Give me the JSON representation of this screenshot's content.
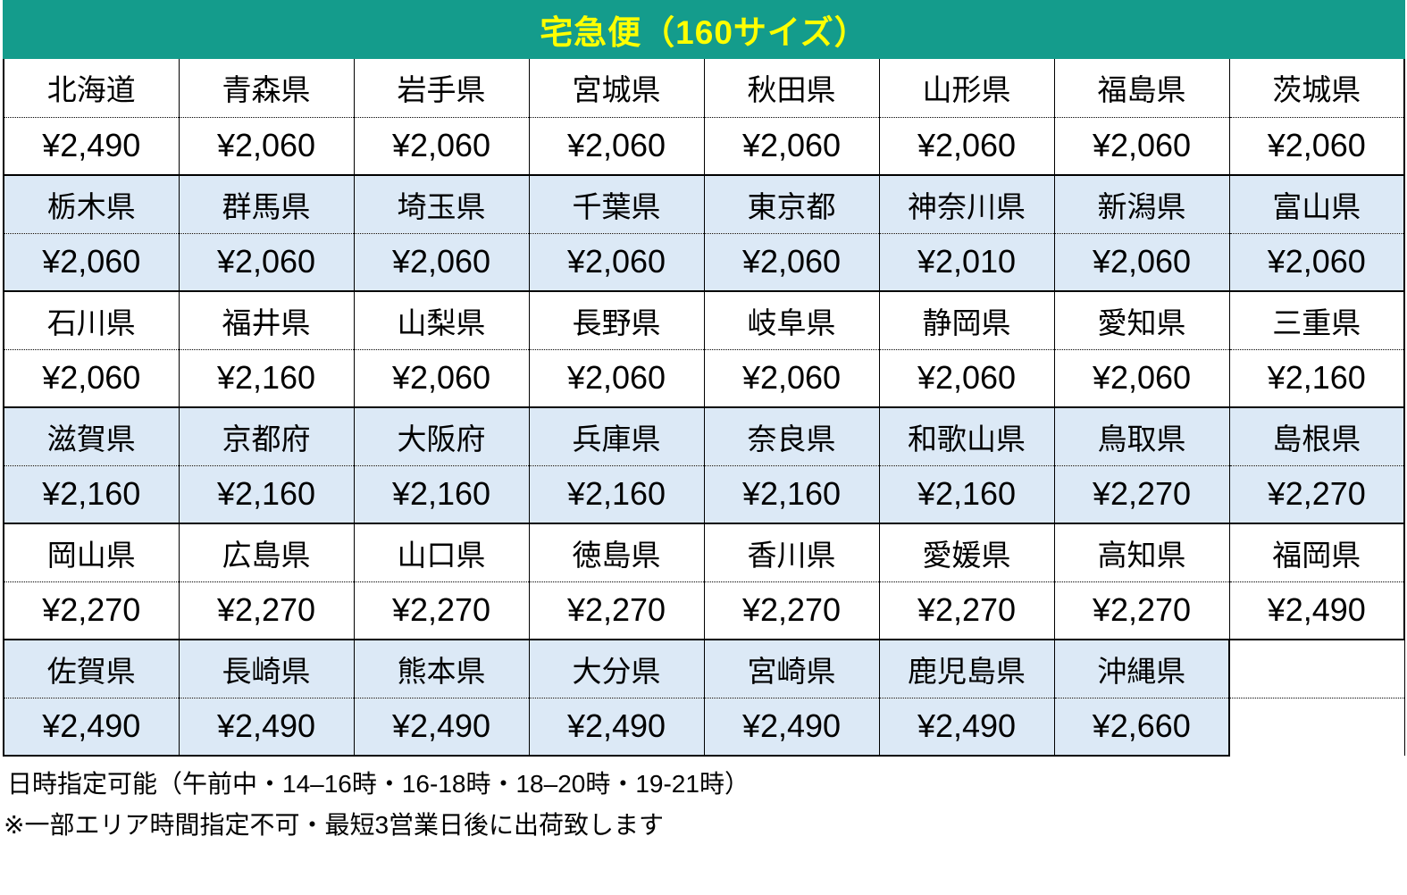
{
  "title": "宅急便（160サイズ）",
  "colors": {
    "header_bg": "#149c8c",
    "title_text": "#ffff00",
    "alt_row_bg": "#dce9f6",
    "border": "#000000"
  },
  "table": {
    "columns": 8,
    "groups": [
      {
        "shade": "white",
        "cells": [
          {
            "name": "北海道",
            "price": "¥2,490"
          },
          {
            "name": "青森県",
            "price": "¥2,060"
          },
          {
            "name": "岩手県",
            "price": "¥2,060"
          },
          {
            "name": "宮城県",
            "price": "¥2,060"
          },
          {
            "name": "秋田県",
            "price": "¥2,060"
          },
          {
            "name": "山形県",
            "price": "¥2,060"
          },
          {
            "name": "福島県",
            "price": "¥2,060"
          },
          {
            "name": "茨城県",
            "price": "¥2,060"
          }
        ]
      },
      {
        "shade": "blue",
        "cells": [
          {
            "name": "栃木県",
            "price": "¥2,060"
          },
          {
            "name": "群馬県",
            "price": "¥2,060"
          },
          {
            "name": "埼玉県",
            "price": "¥2,060"
          },
          {
            "name": "千葉県",
            "price": "¥2,060"
          },
          {
            "name": "東京都",
            "price": "¥2,060"
          },
          {
            "name": "神奈川県",
            "price": "¥2,010"
          },
          {
            "name": "新潟県",
            "price": "¥2,060"
          },
          {
            "name": "富山県",
            "price": "¥2,060"
          }
        ]
      },
      {
        "shade": "white",
        "cells": [
          {
            "name": "石川県",
            "price": "¥2,060"
          },
          {
            "name": "福井県",
            "price": "¥2,160"
          },
          {
            "name": "山梨県",
            "price": "¥2,060"
          },
          {
            "name": "長野県",
            "price": "¥2,060"
          },
          {
            "name": "岐阜県",
            "price": "¥2,060"
          },
          {
            "name": "静岡県",
            "price": "¥2,060"
          },
          {
            "name": "愛知県",
            "price": "¥2,060"
          },
          {
            "name": "三重県",
            "price": "¥2,160"
          }
        ]
      },
      {
        "shade": "blue",
        "cells": [
          {
            "name": "滋賀県",
            "price": "¥2,160"
          },
          {
            "name": "京都府",
            "price": "¥2,160"
          },
          {
            "name": "大阪府",
            "price": "¥2,160"
          },
          {
            "name": "兵庫県",
            "price": "¥2,160"
          },
          {
            "name": "奈良県",
            "price": "¥2,160"
          },
          {
            "name": "和歌山県",
            "price": "¥2,160"
          },
          {
            "name": "鳥取県",
            "price": "¥2,270"
          },
          {
            "name": "島根県",
            "price": "¥2,270"
          }
        ]
      },
      {
        "shade": "white",
        "cells": [
          {
            "name": "岡山県",
            "price": "¥2,270"
          },
          {
            "name": "広島県",
            "price": "¥2,270"
          },
          {
            "name": "山口県",
            "price": "¥2,270"
          },
          {
            "name": "徳島県",
            "price": "¥2,270"
          },
          {
            "name": "香川県",
            "price": "¥2,270"
          },
          {
            "name": "愛媛県",
            "price": "¥2,270"
          },
          {
            "name": "高知県",
            "price": "¥2,270"
          },
          {
            "name": "福岡県",
            "price": "¥2,490"
          }
        ]
      },
      {
        "shade": "blue",
        "cells": [
          {
            "name": "佐賀県",
            "price": "¥2,490"
          },
          {
            "name": "長崎県",
            "price": "¥2,490"
          },
          {
            "name": "熊本県",
            "price": "¥2,490"
          },
          {
            "name": "大分県",
            "price": "¥2,490"
          },
          {
            "name": "宮崎県",
            "price": "¥2,490"
          },
          {
            "name": "鹿児島県",
            "price": "¥2,490"
          },
          {
            "name": "沖縄県",
            "price": "¥2,660"
          }
        ]
      }
    ]
  },
  "footer": {
    "line1": "日時指定可能（午前中・14–16時・16-18時・18–20時・19-21時）",
    "line2": "※一部エリア時間指定不可・最短3営業日後に出荷致します"
  }
}
